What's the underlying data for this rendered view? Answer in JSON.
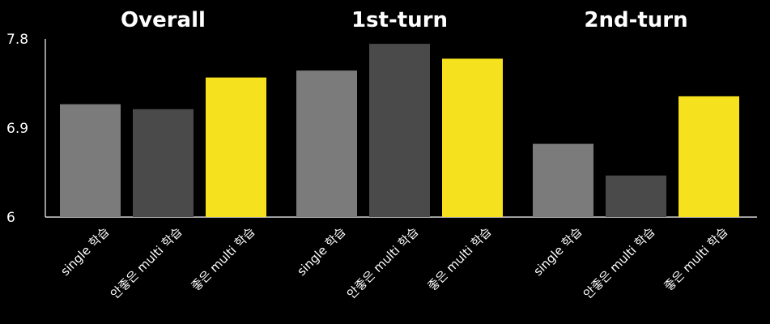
{
  "chart_data": {
    "type": "bar",
    "groups": [
      "Overall",
      "1st-turn",
      "2nd-turn"
    ],
    "categories": [
      "single 학습",
      "안좋은 multi 학습",
      "좋은 multi 학습"
    ],
    "colors": [
      "#7b7b7b",
      "#4a4a4a",
      "#f6e11e"
    ],
    "values": [
      [
        7.14,
        7.09,
        7.41
      ],
      [
        7.48,
        7.75,
        7.6
      ],
      [
        6.74,
        6.42,
        7.22
      ]
    ],
    "y_ticks": [
      "6",
      "6.9",
      "7.8"
    ],
    "ylim": [
      6,
      7.8
    ],
    "title": "",
    "xlabel": "",
    "ylabel": "",
    "grid": false,
    "legend": "none"
  }
}
